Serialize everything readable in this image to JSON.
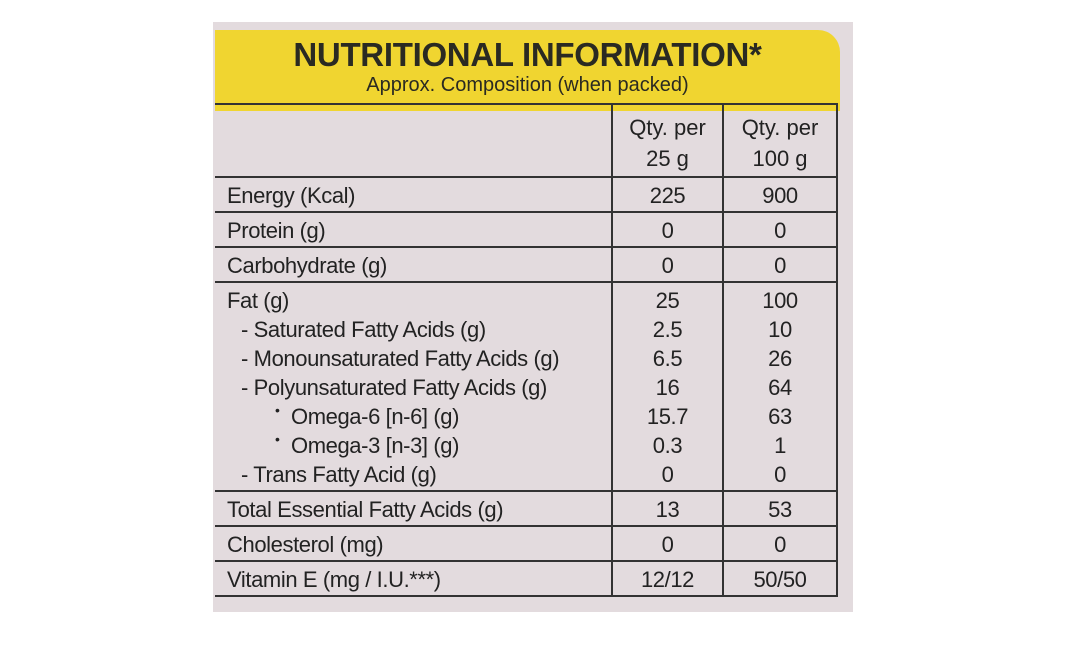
{
  "header": {
    "title": "NUTRITIONAL INFORMATION*",
    "subtitle": "Approx. Composition (when packed)"
  },
  "table": {
    "column_headers": [
      "Qty. per 25 g",
      "Qty. per 100 g"
    ],
    "rows": [
      {
        "lines": [
          {
            "label": "Energy (Kcal)",
            "level": 0,
            "values": [
              225,
              900
            ]
          }
        ]
      },
      {
        "lines": [
          {
            "label": "Protein (g)",
            "level": 0,
            "values": [
              0,
              0
            ]
          }
        ]
      },
      {
        "lines": [
          {
            "label": "Carbohydrate (g)",
            "level": 0,
            "values": [
              0,
              0
            ]
          }
        ]
      },
      {
        "lines": [
          {
            "label": "Fat (g)",
            "level": 0,
            "values": [
              25,
              100
            ]
          },
          {
            "label": "- Saturated Fatty Acids (g)",
            "level": 1,
            "values": [
              2.5,
              10
            ]
          },
          {
            "label": "- Monounsaturated Fatty Acids (g)",
            "level": 1,
            "values": [
              6.5,
              26
            ]
          },
          {
            "label": "- Polyunsaturated Fatty Acids (g)",
            "level": 1,
            "values": [
              16,
              64
            ]
          },
          {
            "label": "Omega-6 [n-6] (g)",
            "level": 2,
            "values": [
              15.7,
              63
            ]
          },
          {
            "label": "Omega-3 [n-3] (g)",
            "level": 2,
            "values": [
              0.3,
              1
            ]
          },
          {
            "label": "- Trans Fatty Acid (g)",
            "level": 1,
            "values": [
              0,
              0
            ]
          }
        ]
      },
      {
        "lines": [
          {
            "label": "Total Essential Fatty Acids (g)",
            "level": 0,
            "values": [
              13,
              53
            ]
          }
        ]
      },
      {
        "lines": [
          {
            "label": "Cholesterol (mg)",
            "level": 0,
            "values": [
              0,
              0
            ]
          }
        ]
      },
      {
        "lines": [
          {
            "label": "Vitamin E (mg / I.U.***)",
            "level": 0,
            "values": [
              "12/12",
              "50/50"
            ]
          }
        ]
      }
    ]
  }
}
